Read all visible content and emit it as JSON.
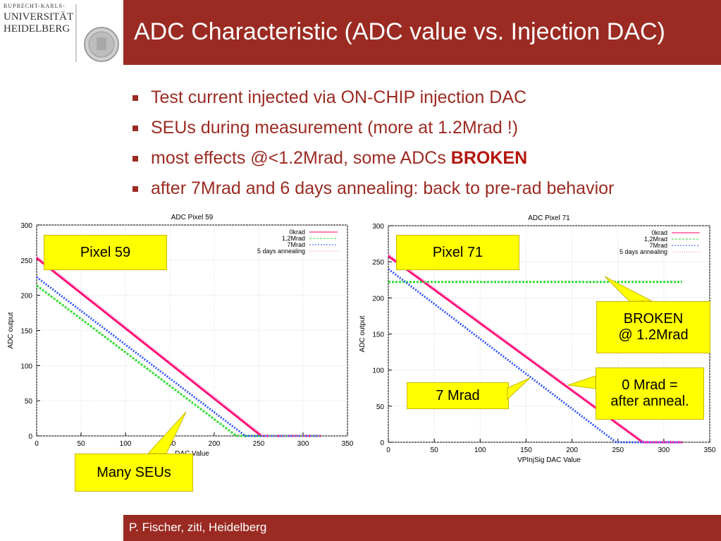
{
  "title": "ADC Characteristic (ADC value vs. Injection DAC)",
  "logo": {
    "line1": "RUPRECHT-KARLS-",
    "line2": "UNIVERSITÄT",
    "line3": "HEIDELBERG"
  },
  "bullets": [
    {
      "text": "Test current injected via ON-CHIP injection DAC"
    },
    {
      "text": "SEUs during measurement (more at 1.2Mrad !)"
    },
    {
      "text": "most effects @<1.2Mrad, some ADCs ",
      "emphasis": "BROKEN"
    },
    {
      "text": "after 7Mrad and 6 days annealing: back to pre-rad behavior"
    }
  ],
  "footer": "P. Fischer, ziti, Heidelberg",
  "callouts": {
    "pixel59": "Pixel 59",
    "pixel71": "Pixel 71",
    "many_seus": "Many SEUs",
    "broken_l1": "BROKEN",
    "broken_l2": "@ 1.2Mrad",
    "sevenmrad": "7 Mrad",
    "zero_l1": "0 Mrad =",
    "zero_l2": "after anneal."
  },
  "colors": {
    "accent": "#9b2b22",
    "callout": "#ffff00",
    "s0krad": "#ff0066",
    "s12mrad": "#33dd33",
    "s7mrad": "#3355ff",
    "sanneal": "#ff66cc"
  },
  "chart_data": [
    {
      "type": "line",
      "title": "ADC Pixel 59",
      "xlabel": "DAC Value",
      "ylabel": "ADC output",
      "xlim": [
        0,
        350
      ],
      "ylim": [
        0,
        300
      ],
      "xticks": [
        0,
        50,
        100,
        150,
        200,
        250,
        300,
        350
      ],
      "yticks": [
        0,
        50,
        100,
        150,
        200,
        250,
        300
      ],
      "grid": true,
      "legend": "top-right",
      "series": [
        {
          "name": "0krad",
          "x": [
            0,
            253,
            320
          ],
          "y": [
            253,
            0,
            0
          ]
        },
        {
          "name": "1,2Mrad",
          "x": [
            0,
            225,
            320
          ],
          "y": [
            214,
            0,
            0
          ]
        },
        {
          "name": "7Mrad",
          "x": [
            0,
            235,
            320
          ],
          "y": [
            226,
            0,
            0
          ]
        },
        {
          "name": "5 days annealing",
          "x": [
            0,
            255,
            320
          ],
          "y": [
            255,
            0,
            0
          ]
        }
      ]
    },
    {
      "type": "line",
      "title": "ADC Pixel 71",
      "xlabel": "VPInjSig DAC Value",
      "ylabel": "ADC output",
      "xlim": [
        0,
        350
      ],
      "ylim": [
        0,
        300
      ],
      "xticks": [
        0,
        50,
        100,
        150,
        200,
        250,
        300,
        350
      ],
      "yticks": [
        0,
        50,
        100,
        150,
        200,
        250,
        300
      ],
      "grid": true,
      "legend": "top-right",
      "series": [
        {
          "name": "0krad",
          "x": [
            0,
            277,
            320
          ],
          "y": [
            258,
            0,
            0
          ]
        },
        {
          "name": "1,2Mrad",
          "x": [
            0,
            320
          ],
          "y": [
            222,
            222
          ]
        },
        {
          "name": "7Mrad",
          "x": [
            0,
            248,
            320
          ],
          "y": [
            240,
            0,
            0
          ]
        },
        {
          "name": "5 days annealing",
          "x": [
            0,
            278,
            320
          ],
          "y": [
            260,
            0,
            0
          ]
        }
      ]
    }
  ]
}
